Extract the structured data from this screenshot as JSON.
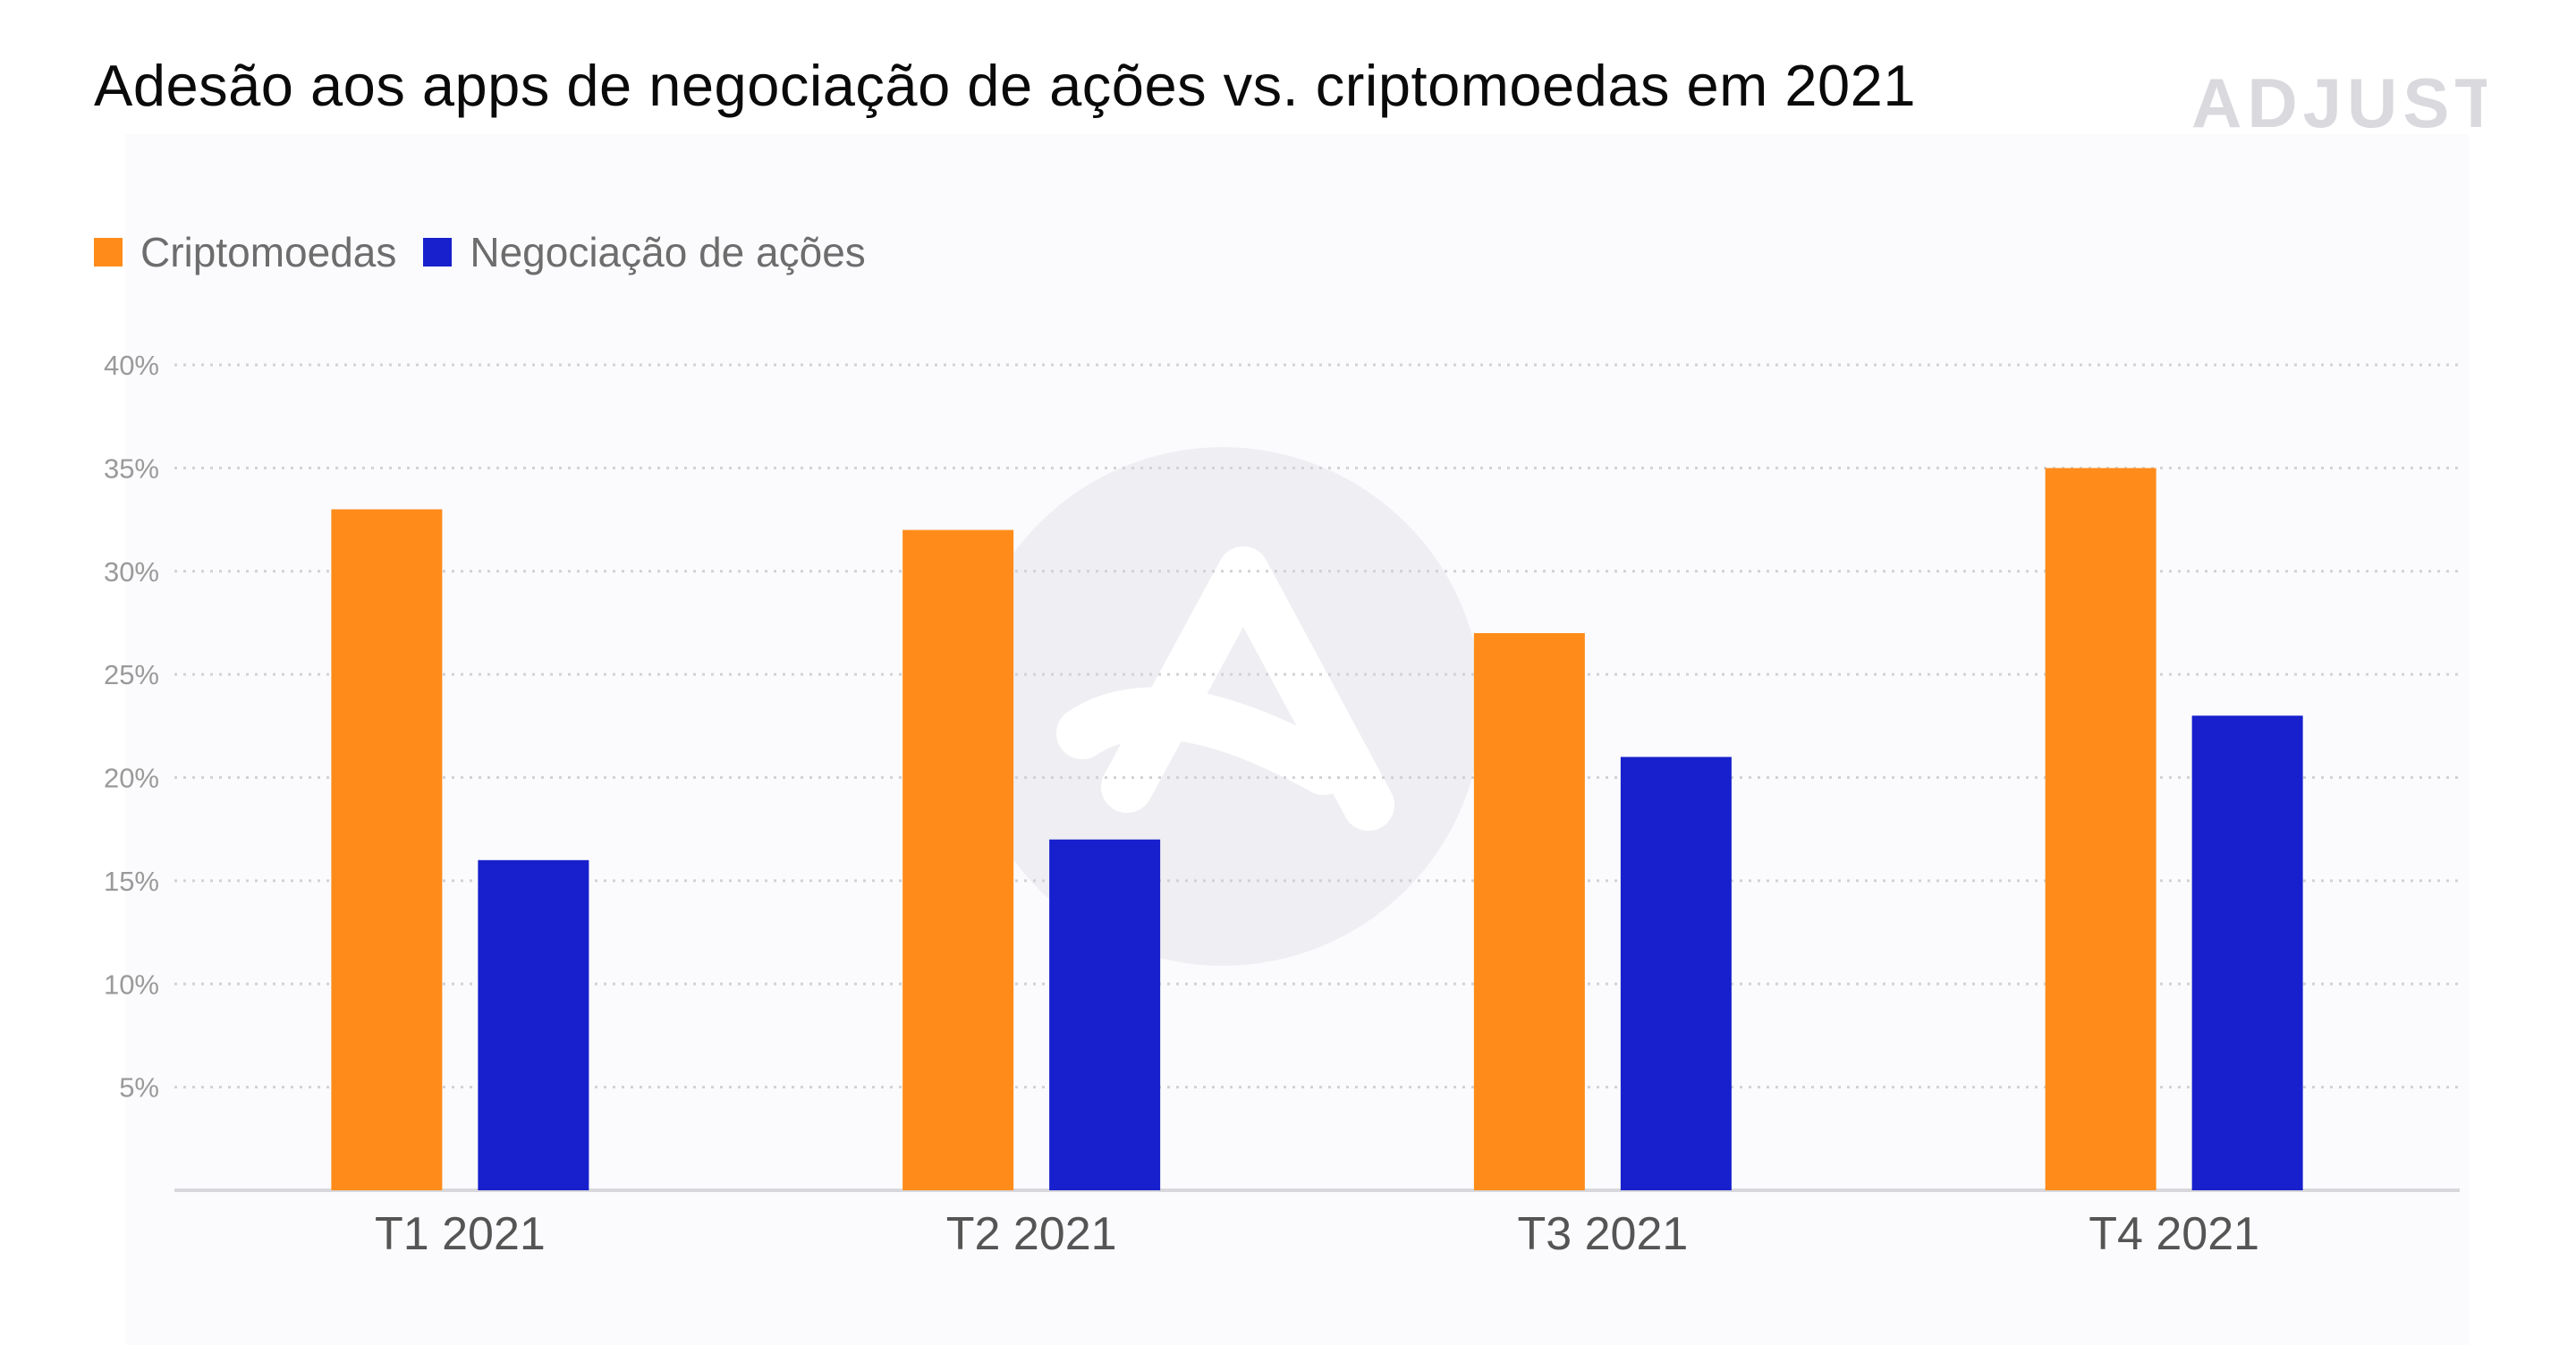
{
  "chart_data": {
    "type": "bar",
    "title": "Adesão aos apps de negociação de ações vs. criptomoedas em 2021",
    "categories": [
      "T1 2021",
      "T2 2021",
      "T3 2021",
      "T4 2021"
    ],
    "series": [
      {
        "name": "Criptomoedas",
        "values": [
          33,
          32,
          27,
          35
        ],
        "color": "#ff8c1a"
      },
      {
        "name": "Negociação de ações",
        "values": [
          16,
          17,
          21,
          23
        ],
        "color": "#1720cc"
      }
    ],
    "ylim": [
      0,
      40
    ],
    "y_ticks": [
      {
        "value": 5,
        "label": "5%"
      },
      {
        "value": 10,
        "label": "10%"
      },
      {
        "value": 15,
        "label": "15%"
      },
      {
        "value": 20,
        "label": "20%"
      },
      {
        "value": 25,
        "label": "25%"
      },
      {
        "value": 30,
        "label": "30%"
      },
      {
        "value": 35,
        "label": "35%"
      },
      {
        "value": 40,
        "label": "40%"
      }
    ],
    "xlabel": "",
    "ylabel": "",
    "grid": "dotted horizontal",
    "legend_position": "top-left"
  },
  "brand": {
    "logo_text": "ADJUST",
    "logo_color": "#d9d9de",
    "watermark_color": "#efeff3"
  }
}
